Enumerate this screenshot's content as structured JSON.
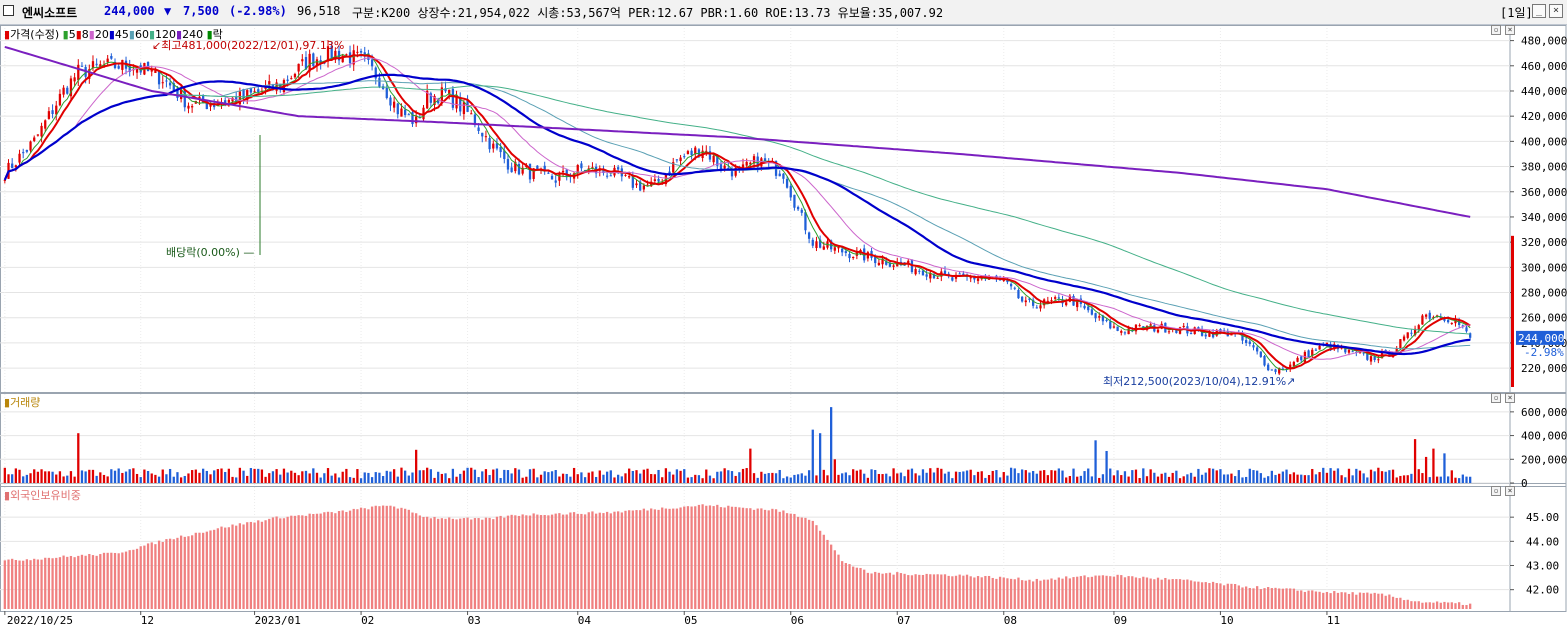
{
  "header": {
    "stock_name": "엔씨소프트",
    "price": "244,000",
    "change_arrow": "▼",
    "change": "7,500",
    "change_pct": "(-2.98%)",
    "volume": "96,518",
    "info_text": "구분:K200 상장수:21,954,022 시총:53,567억 PER:12.67 PBR:1.60 ROE:13.73 유보율:35,007.92",
    "period_button": "[1일]",
    "colors": {
      "price": "#0000cc",
      "change": "#0000cc"
    }
  },
  "legend": {
    "price_label": "가격(수정)",
    "ma_items": [
      {
        "label": "5",
        "color": "#2ca02c"
      },
      {
        "label": "8",
        "color": "#e00000"
      },
      {
        "label": "20",
        "color": "#cc66cc"
      },
      {
        "label": "45",
        "color": "#0000cc"
      },
      {
        "label": "60",
        "color": "#5aa0b4"
      },
      {
        "label": "120",
        "color": "#44b088"
      },
      {
        "label": "240",
        "color": "#7a1fbf"
      }
    ],
    "drop_label": "락"
  },
  "volume_legend": "거래량",
  "foreign_legend": "외국인보유비중",
  "annotations": {
    "high": "최고481,000(2022/12/01),97.13%",
    "low": "최저212,500(2023/10/04),12.91%",
    "dividend": "배당락(0.00%)",
    "current_price_box": "244,000",
    "current_change": "-2.98%"
  },
  "chart_data": {
    "type": "candlestick",
    "x_axis_labels": [
      "2022/10/25",
      "12",
      "2023/01",
      "02",
      "03",
      "04",
      "05",
      "06",
      "07",
      "08",
      "09",
      "10",
      "11"
    ],
    "price_axis": {
      "ticks": [
        "480,000",
        "460,000",
        "440,000",
        "420,000",
        "400,000",
        "380,000",
        "360,000",
        "340,000",
        "320,000",
        "300,000",
        "280,000",
        "260,000",
        "240,000",
        "220,000"
      ],
      "ylim": [
        205000,
        490000
      ]
    },
    "volume_axis": {
      "ticks": [
        "600,000",
        "400,000",
        "200,000",
        "0"
      ],
      "ylim": [
        0,
        700000
      ]
    },
    "foreign_axis": {
      "ticks": [
        "45.00",
        "44.00",
        "43.00",
        "42.00"
      ],
      "ylim": [
        41.2,
        46.0
      ]
    },
    "price_keyframes": [
      {
        "i": 0,
        "v": 375000
      },
      {
        "i": 8,
        "v": 400000
      },
      {
        "i": 16,
        "v": 440000
      },
      {
        "i": 20,
        "v": 455000
      },
      {
        "i": 27,
        "v": 460000
      },
      {
        "i": 35,
        "v": 460000
      },
      {
        "i": 43,
        "v": 450000
      },
      {
        "i": 50,
        "v": 430000
      },
      {
        "i": 57,
        "v": 430000
      },
      {
        "i": 65,
        "v": 435000
      },
      {
        "i": 75,
        "v": 445000
      },
      {
        "i": 83,
        "v": 465000
      },
      {
        "i": 90,
        "v": 470000
      },
      {
        "i": 97,
        "v": 465000
      },
      {
        "i": 102,
        "v": 450000
      },
      {
        "i": 107,
        "v": 425000
      },
      {
        "i": 112,
        "v": 415000
      },
      {
        "i": 115,
        "v": 435000
      },
      {
        "i": 120,
        "v": 438000
      },
      {
        "i": 127,
        "v": 420000
      },
      {
        "i": 133,
        "v": 395000
      },
      {
        "i": 138,
        "v": 380000
      },
      {
        "i": 143,
        "v": 375000
      },
      {
        "i": 150,
        "v": 370000
      },
      {
        "i": 157,
        "v": 378000
      },
      {
        "i": 165,
        "v": 375000
      },
      {
        "i": 172,
        "v": 365000
      },
      {
        "i": 177,
        "v": 365000
      },
      {
        "i": 183,
        "v": 385000
      },
      {
        "i": 190,
        "v": 395000
      },
      {
        "i": 195,
        "v": 380000
      },
      {
        "i": 200,
        "v": 375000
      },
      {
        "i": 205,
        "v": 385000
      },
      {
        "i": 212,
        "v": 375000
      },
      {
        "i": 216,
        "v": 345000
      },
      {
        "i": 220,
        "v": 320000
      },
      {
        "i": 225,
        "v": 315000
      },
      {
        "i": 232,
        "v": 310000
      },
      {
        "i": 240,
        "v": 305000
      },
      {
        "i": 250,
        "v": 298000
      },
      {
        "i": 258,
        "v": 290000
      },
      {
        "i": 265,
        "v": 292000
      },
      {
        "i": 272,
        "v": 288000
      },
      {
        "i": 278,
        "v": 270000
      },
      {
        "i": 285,
        "v": 272000
      },
      {
        "i": 290,
        "v": 275000
      },
      {
        "i": 297,
        "v": 260000
      },
      {
        "i": 303,
        "v": 250000
      },
      {
        "i": 310,
        "v": 252000
      },
      {
        "i": 318,
        "v": 252000
      },
      {
        "i": 326,
        "v": 248000
      },
      {
        "i": 334,
        "v": 248000
      },
      {
        "i": 340,
        "v": 235000
      },
      {
        "i": 345,
        "v": 218000
      },
      {
        "i": 350,
        "v": 222000
      },
      {
        "i": 355,
        "v": 232000
      },
      {
        "i": 360,
        "v": 238000
      },
      {
        "i": 366,
        "v": 232000
      },
      {
        "i": 372,
        "v": 228000
      },
      {
        "i": 377,
        "v": 232000
      },
      {
        "i": 382,
        "v": 245000
      },
      {
        "i": 386,
        "v": 262000
      },
      {
        "i": 391,
        "v": 262000
      },
      {
        "i": 395,
        "v": 258000
      },
      {
        "i": 399,
        "v": 244000
      }
    ],
    "ma240_keyframes": [
      {
        "i": 0,
        "v": 475000
      },
      {
        "i": 40,
        "v": 440000
      },
      {
        "i": 80,
        "v": 420000
      },
      {
        "i": 120,
        "v": 415000
      },
      {
        "i": 200,
        "v": 403000
      },
      {
        "i": 260,
        "v": 390000
      },
      {
        "i": 320,
        "v": 375000
      },
      {
        "i": 360,
        "v": 362000
      },
      {
        "i": 399,
        "v": 340000
      }
    ],
    "foreign_keyframes": [
      {
        "i": 0,
        "v": 43.2
      },
      {
        "i": 30,
        "v": 43.5
      },
      {
        "i": 45,
        "v": 44.1
      },
      {
        "i": 60,
        "v": 44.6
      },
      {
        "i": 75,
        "v": 45.0
      },
      {
        "i": 90,
        "v": 45.2
      },
      {
        "i": 105,
        "v": 45.5
      },
      {
        "i": 115,
        "v": 45.0
      },
      {
        "i": 130,
        "v": 44.9
      },
      {
        "i": 140,
        "v": 45.1
      },
      {
        "i": 165,
        "v": 45.2
      },
      {
        "i": 190,
        "v": 45.5
      },
      {
        "i": 210,
        "v": 45.3
      },
      {
        "i": 220,
        "v": 44.9
      },
      {
        "i": 228,
        "v": 43.2
      },
      {
        "i": 235,
        "v": 42.7
      },
      {
        "i": 260,
        "v": 42.6
      },
      {
        "i": 280,
        "v": 42.4
      },
      {
        "i": 300,
        "v": 42.6
      },
      {
        "i": 320,
        "v": 42.4
      },
      {
        "i": 340,
        "v": 42.1
      },
      {
        "i": 360,
        "v": 41.9
      },
      {
        "i": 375,
        "v": 41.8
      },
      {
        "i": 385,
        "v": 41.5
      },
      {
        "i": 399,
        "v": 41.4
      }
    ],
    "volume_spikes": [
      {
        "i": 20,
        "v": 420000
      },
      {
        "i": 112,
        "v": 280000
      },
      {
        "i": 203,
        "v": 290000
      },
      {
        "i": 220,
        "v": 450000
      },
      {
        "i": 222,
        "v": 420000
      },
      {
        "i": 225,
        "v": 640000
      },
      {
        "i": 226,
        "v": 200000
      },
      {
        "i": 297,
        "v": 360000
      },
      {
        "i": 300,
        "v": 270000
      },
      {
        "i": 384,
        "v": 370000
      },
      {
        "i": 387,
        "v": 220000
      },
      {
        "i": 389,
        "v": 290000
      },
      {
        "i": 392,
        "v": 250000
      }
    ],
    "bar_count": 400
  },
  "colors": {
    "up": "#e00000",
    "down": "#1f5fd8",
    "foreign_bar": "#f08080",
    "grid": "#d8d8d8",
    "axis_text": "#000000"
  }
}
